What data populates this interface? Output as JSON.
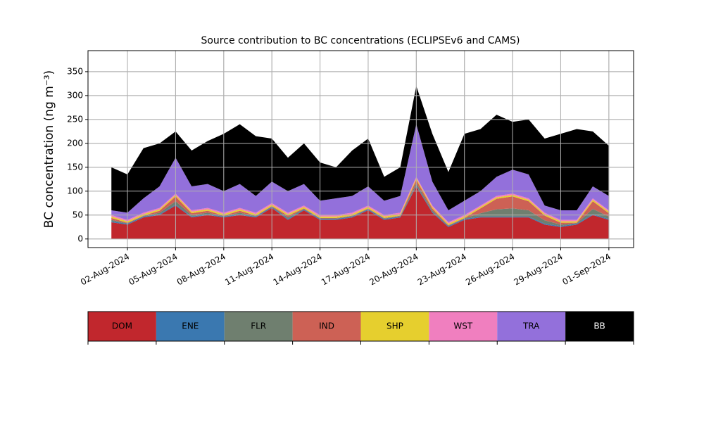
{
  "chart_data": {
    "type": "stacked_area",
    "title": "Source contribution to BC concentrations (ECLIPSEv6 and CAMS)",
    "y_label": "BC concentration (ng m⁻³)",
    "x": [
      "2024-08-01",
      "2024-08-02",
      "2024-08-03",
      "2024-08-04",
      "2024-08-05",
      "2024-08-06",
      "2024-08-07",
      "2024-08-08",
      "2024-08-09",
      "2024-08-10",
      "2024-08-11",
      "2024-08-12",
      "2024-08-13",
      "2024-08-14",
      "2024-08-15",
      "2024-08-16",
      "2024-08-17",
      "2024-08-18",
      "2024-08-19",
      "2024-08-20",
      "2024-08-21",
      "2024-08-22",
      "2024-08-23",
      "2024-08-24",
      "2024-08-25",
      "2024-08-26",
      "2024-08-27",
      "2024-08-28",
      "2024-08-29",
      "2024-08-30",
      "2024-08-31",
      "2024-09-01"
    ],
    "series": [
      {
        "name": "DOM",
        "color": "#c1272d",
        "values": [
          35,
          30,
          45,
          50,
          70,
          45,
          50,
          45,
          50,
          45,
          65,
          40,
          60,
          40,
          40,
          45,
          60,
          40,
          45,
          110,
          55,
          25,
          40,
          45,
          45,
          45,
          45,
          30,
          25,
          30,
          50,
          40
        ]
      },
      {
        "name": "ENE",
        "color": "#3a78b0",
        "values": [
          2,
          2,
          2,
          2,
          2,
          2,
          2,
          2,
          2,
          2,
          2,
          2,
          2,
          2,
          2,
          2,
          2,
          2,
          2,
          2,
          2,
          2,
          2,
          2,
          2,
          2,
          2,
          2,
          2,
          2,
          2,
          2
        ]
      },
      {
        "name": "FLR",
        "color": "#6f7f6f",
        "values": [
          3,
          1,
          1,
          3,
          7,
          3,
          3,
          1,
          3,
          1,
          1,
          3,
          1,
          1,
          1,
          1,
          1,
          1,
          1,
          5,
          3,
          1,
          1,
          7,
          15,
          17,
          13,
          7,
          3,
          1,
          11,
          5
        ]
      },
      {
        "name": "IND",
        "color": "#cd6155",
        "values": [
          4,
          1,
          1,
          4,
          10,
          4,
          4,
          1,
          4,
          1,
          1,
          4,
          1,
          1,
          1,
          1,
          1,
          1,
          1,
          7,
          4,
          1,
          1,
          10,
          22,
          25,
          19,
          10,
          4,
          1,
          16,
          7
        ]
      },
      {
        "name": "SHP",
        "color": "#e6cf2e",
        "values": [
          3,
          3,
          3,
          3,
          3,
          3,
          3,
          3,
          3,
          3,
          3,
          3,
          3,
          3,
          3,
          3,
          3,
          3,
          3,
          3,
          3,
          3,
          3,
          3,
          3,
          3,
          3,
          3,
          3,
          3,
          3,
          3
        ]
      },
      {
        "name": "WST",
        "color": "#f07fbf",
        "values": [
          3,
          3,
          3,
          3,
          3,
          3,
          3,
          3,
          3,
          3,
          3,
          3,
          3,
          3,
          3,
          3,
          3,
          3,
          3,
          3,
          3,
          3,
          3,
          3,
          3,
          3,
          3,
          3,
          3,
          3,
          3,
          3
        ]
      },
      {
        "name": "TRA",
        "color": "#9370db",
        "values": [
          10,
          15,
          30,
          45,
          75,
          50,
          50,
          45,
          50,
          35,
          45,
          45,
          45,
          30,
          35,
          35,
          40,
          30,
          35,
          110,
          50,
          25,
          30,
          30,
          40,
          50,
          50,
          15,
          20,
          20,
          25,
          30
        ]
      },
      {
        "name": "BB",
        "color": "#000000",
        "values": [
          90,
          80,
          105,
          90,
          55,
          75,
          90,
          120,
          125,
          125,
          90,
          70,
          85,
          80,
          65,
          95,
          100,
          50,
          60,
          80,
          100,
          80,
          140,
          130,
          130,
          100,
          115,
          140,
          160,
          170,
          115,
          105
        ]
      }
    ],
    "xlim": [
      "2024-07-30T13:00:00Z",
      "2024-09-02T13:00:00Z"
    ],
    "xticks": [
      {
        "value": "2024-08-02",
        "label": "02-Aug-2024"
      },
      {
        "value": "2024-08-05",
        "label": "05-Aug-2024"
      },
      {
        "value": "2024-08-08",
        "label": "08-Aug-2024"
      },
      {
        "value": "2024-08-11",
        "label": "11-Aug-2024"
      },
      {
        "value": "2024-08-14",
        "label": "14-Aug-2024"
      },
      {
        "value": "2024-08-17",
        "label": "17-Aug-2024"
      },
      {
        "value": "2024-08-20",
        "label": "20-Aug-2024"
      },
      {
        "value": "2024-08-23",
        "label": "23-Aug-2024"
      },
      {
        "value": "2024-08-26",
        "label": "26-Aug-2024"
      },
      {
        "value": "2024-08-29",
        "label": "29-Aug-2024"
      },
      {
        "value": "2024-09-01",
        "label": "01-Sep-2024"
      }
    ],
    "ylim": [
      -18,
      394
    ],
    "yticks": [
      0,
      50,
      100,
      150,
      200,
      250,
      300,
      350
    ],
    "grid": true
  }
}
